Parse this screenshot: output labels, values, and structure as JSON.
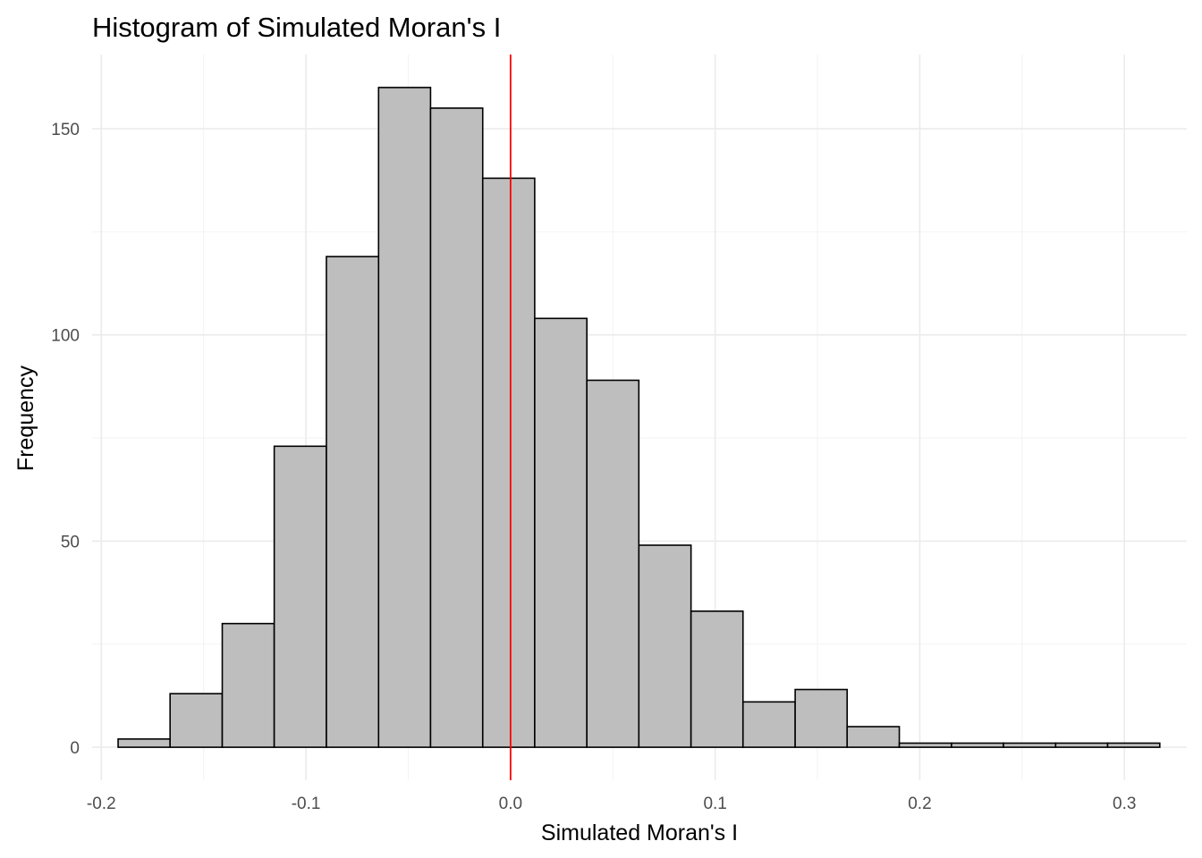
{
  "chart_data": {
    "type": "bar",
    "title": "Histogram of Simulated Moran's I",
    "xlabel": "Simulated Moran's I",
    "ylabel": "Frequency",
    "xlim": [
      -0.2045,
      0.3305
    ],
    "ylim": [
      -8,
      168
    ],
    "x_ticks": [
      {
        "value": -0.2,
        "label": "-0.2"
      },
      {
        "value": -0.1,
        "label": "-0.1"
      },
      {
        "value": 0.0,
        "label": "0.0"
      },
      {
        "value": 0.1,
        "label": "0.1"
      },
      {
        "value": 0.2,
        "label": "0.2"
      },
      {
        "value": 0.3,
        "label": "0.3"
      }
    ],
    "y_ticks": [
      {
        "value": 0,
        "label": "0"
      },
      {
        "value": 50,
        "label": "50"
      },
      {
        "value": 100,
        "label": "100"
      },
      {
        "value": 150,
        "label": "150"
      }
    ],
    "bins": [
      {
        "x0": -0.1918,
        "x1": -0.1664,
        "count": 2
      },
      {
        "x0": -0.1664,
        "x1": -0.1409,
        "count": 13
      },
      {
        "x0": -0.1409,
        "x1": -0.1155,
        "count": 30
      },
      {
        "x0": -0.1155,
        "x1": -0.09,
        "count": 73
      },
      {
        "x0": -0.09,
        "x1": -0.0645,
        "count": 119
      },
      {
        "x0": -0.0645,
        "x1": -0.0391,
        "count": 160
      },
      {
        "x0": -0.0391,
        "x1": -0.0136,
        "count": 155
      },
      {
        "x0": -0.0136,
        "x1": 0.0118,
        "count": 138
      },
      {
        "x0": 0.0118,
        "x1": 0.0373,
        "count": 104
      },
      {
        "x0": 0.0373,
        "x1": 0.0627,
        "count": 89
      },
      {
        "x0": 0.0627,
        "x1": 0.0882,
        "count": 49
      },
      {
        "x0": 0.0882,
        "x1": 0.1136,
        "count": 33
      },
      {
        "x0": 0.1136,
        "x1": 0.1391,
        "count": 11
      },
      {
        "x0": 0.1391,
        "x1": 0.1645,
        "count": 14
      },
      {
        "x0": 0.1645,
        "x1": 0.19,
        "count": 5
      },
      {
        "x0": 0.19,
        "x1": 0.2155,
        "count": 1
      },
      {
        "x0": 0.2155,
        "x1": 0.2409,
        "count": 1
      },
      {
        "x0": 0.2409,
        "x1": 0.2664,
        "count": 1
      },
      {
        "x0": 0.2664,
        "x1": 0.2918,
        "count": 1
      },
      {
        "x0": 0.2918,
        "x1": 0.3173,
        "count": 1
      }
    ],
    "reference_line": {
      "x": 0.0,
      "color": "#ff0000"
    },
    "bar_fill": "#bebebe",
    "bar_stroke": "#000000",
    "grid": true,
    "legend": "none"
  }
}
